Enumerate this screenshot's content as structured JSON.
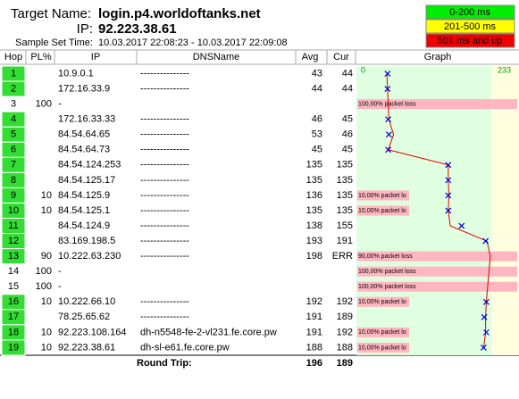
{
  "header": {
    "target_label": "Target Name:",
    "target": "login.p4.worldoftanks.net",
    "ip_label": "IP:",
    "ip": "92.223.38.61",
    "time_label": "Sample Set Time:",
    "time": "10.03.2017 22:08:23 - 10.03.2017 22:09:08"
  },
  "legend": [
    {
      "label": "0-200 ms",
      "color": "#00ee00"
    },
    {
      "label": "201-500 ms",
      "color": "#ffff00"
    },
    {
      "label": "501 ms and up",
      "color": "#ee0000"
    }
  ],
  "columns": [
    "Hop",
    "PL%",
    "IP",
    "DNSName",
    "Avg",
    "Cur",
    "Graph"
  ],
  "graph": {
    "min": "0",
    "max": "233"
  },
  "rows": [
    {
      "hop": "1",
      "ip": "10.9.0.1",
      "dns": "---------------",
      "avg": 43,
      "cur": 44
    },
    {
      "hop": "2",
      "ip": "172.16.33.9",
      "dns": "---------------",
      "avg": 44,
      "cur": 44
    },
    {
      "hop": "3",
      "pl": "100",
      "ip": "-",
      "loss": "100,00% packet loss"
    },
    {
      "hop": "4",
      "ip": "172.16.33.33",
      "dns": "---------------",
      "avg": 46,
      "cur": 45
    },
    {
      "hop": "5",
      "ip": "84.54.64.65",
      "dns": "---------------",
      "avg": 53,
      "cur": 46
    },
    {
      "hop": "6",
      "ip": "84.54.64.73",
      "dns": "---------------",
      "avg": 45,
      "cur": 45
    },
    {
      "hop": "7",
      "ip": "84.54.124.253",
      "dns": "---------------",
      "avg": 135,
      "cur": 135
    },
    {
      "hop": "8",
      "ip": "84.54.125.17",
      "dns": "---------------",
      "avg": 135,
      "cur": 135
    },
    {
      "hop": "9",
      "pl": "10",
      "ip": "84.54.125.9",
      "dns": "---------------",
      "avg": 136,
      "cur": 135,
      "loss": "10,00% packet lo"
    },
    {
      "hop": "10",
      "pl": "10",
      "ip": "84.54.125.1",
      "dns": "---------------",
      "avg": 135,
      "cur": 135,
      "loss": "10,00% packet lo"
    },
    {
      "hop": "11",
      "ip": "84.54.124.9",
      "dns": "---------------",
      "avg": 138,
      "cur": 155
    },
    {
      "hop": "12",
      "ip": "83.169.198.5",
      "dns": "---------------",
      "avg": 193,
      "cur": 191
    },
    {
      "hop": "13",
      "pl": "90",
      "ip": "10.222.63.230",
      "dns": "---------------",
      "avg": 198,
      "cur": "ERR",
      "loss": "90,00% packet loss"
    },
    {
      "hop": "14",
      "pl": "100",
      "ip": "-",
      "loss": "100,00% packet loss"
    },
    {
      "hop": "15",
      "pl": "100",
      "ip": "-",
      "loss": "100,00% packet loss"
    },
    {
      "hop": "16",
      "pl": "10",
      "ip": "10.222.66.10",
      "dns": "---------------",
      "avg": 192,
      "cur": 192,
      "loss": "10,00% packet lo"
    },
    {
      "hop": "17",
      "ip": "78.25.65.62",
      "dns": "---------------",
      "avg": 191,
      "cur": 189
    },
    {
      "hop": "18",
      "pl": "10",
      "ip": "92.223.108.164",
      "dns": "dh-n5548-fe-2-vl231.fe.core.pw",
      "avg": 191,
      "cur": 192,
      "loss": "10,00% packet lo"
    },
    {
      "hop": "19",
      "pl": "10",
      "ip": "92.223.38.61",
      "dns": "dh-sl-e61.fe.core.pw",
      "avg": 188,
      "cur": 188,
      "loss": "10,00% packet lo"
    }
  ],
  "round_trip": {
    "label": "Round Trip:",
    "avg": 196,
    "cur": 189
  }
}
